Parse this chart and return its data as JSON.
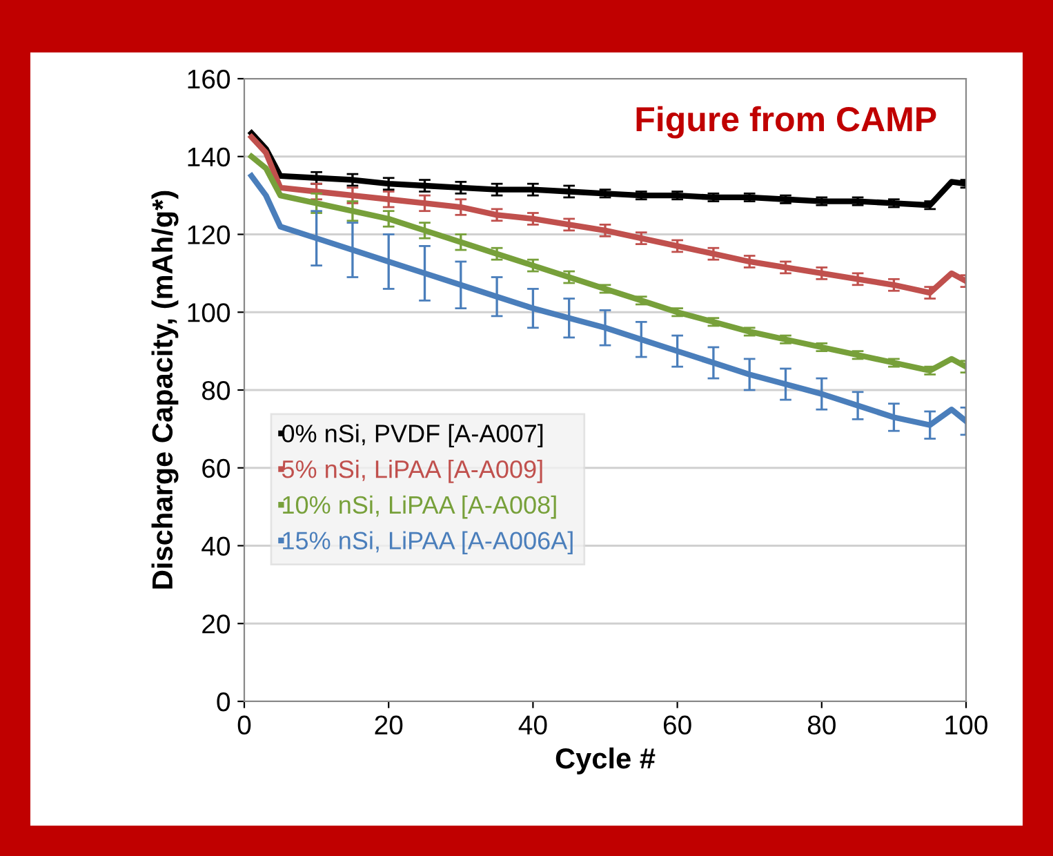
{
  "chart_data": {
    "type": "line",
    "xlabel": "Cycle #",
    "ylabel": "Discharge Capacity, (mAh/g*)",
    "xlim": [
      0,
      100
    ],
    "xticks": [
      0,
      20,
      40,
      60,
      80,
      100
    ],
    "ylim": [
      0,
      160
    ],
    "yticks": [
      0,
      20,
      40,
      60,
      80,
      100,
      120,
      140,
      160
    ],
    "grid": "y",
    "legend": "bottom left",
    "marker": "none",
    "line_style": "solid",
    "annotations": [
      "Figure from CAMP"
    ],
    "x": [
      1,
      3,
      5,
      10,
      15,
      20,
      25,
      30,
      35,
      40,
      45,
      50,
      55,
      60,
      65,
      70,
      75,
      80,
      85,
      90,
      95,
      98,
      100
    ],
    "series": [
      {
        "name": "0% nSi, PVDF [A-A007]",
        "color": "#000000",
        "values": [
          146,
          142,
          135,
          134.5,
          134,
          133,
          132.5,
          132,
          131.5,
          131.5,
          131,
          130.5,
          130,
          130,
          129.5,
          129.5,
          129,
          128.5,
          128.5,
          128,
          127.5,
          133.5,
          133
        ],
        "errors": [
          null,
          null,
          null,
          1.5,
          1.5,
          1.5,
          1.5,
          1.5,
          1.5,
          1.5,
          1.5,
          1,
          1,
          1,
          1,
          1,
          1,
          1,
          1,
          1,
          1,
          null,
          1
        ]
      },
      {
        "name": "5% nSi, LiPAA [A-A009]",
        "color": "#c0504d",
        "values": [
          145,
          141,
          132,
          131,
          130,
          129,
          128,
          127,
          125,
          124,
          122.5,
          121,
          119,
          117,
          115,
          113,
          111.5,
          110,
          108.5,
          107,
          105,
          110,
          108
        ],
        "errors": [
          null,
          null,
          null,
          2,
          2,
          2,
          2,
          2,
          1.5,
          1.5,
          1.5,
          1.5,
          1.5,
          1.5,
          1.5,
          1.5,
          1.5,
          1.5,
          1.5,
          1.5,
          1.5,
          null,
          1.5
        ]
      },
      {
        "name": "10% nSi, LiPAA [A-A008]",
        "color": "#77a03a",
        "values": [
          140,
          137,
          130,
          128,
          126,
          124,
          121,
          118,
          115,
          112,
          109,
          106,
          103,
          100,
          97.5,
          95,
          93,
          91,
          89,
          87,
          85,
          88,
          86
        ],
        "errors": [
          null,
          null,
          null,
          2.5,
          2.5,
          2,
          2,
          2,
          1.5,
          1.5,
          1.5,
          1,
          1,
          1,
          1,
          1,
          1,
          1,
          1,
          1,
          1,
          null,
          1.5
        ]
      },
      {
        "name": "15% nSi, LiPAA [A-A006A]",
        "color": "#4a7ebb",
        "values": [
          135,
          130,
          122,
          119,
          116,
          113,
          110,
          107,
          104,
          101,
          98.5,
          96,
          93,
          90,
          87,
          84,
          81.5,
          79,
          76,
          73,
          71,
          75,
          72
        ],
        "errors": [
          null,
          null,
          null,
          7,
          7,
          7,
          7,
          6,
          5,
          5,
          5,
          4.5,
          4.5,
          4,
          4,
          4,
          4,
          4,
          3.5,
          3.5,
          3.5,
          null,
          3.5
        ]
      }
    ]
  }
}
